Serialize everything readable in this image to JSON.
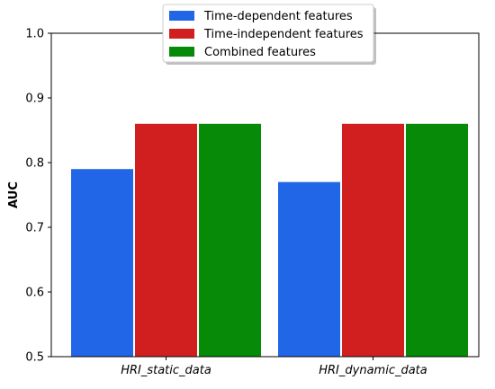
{
  "chart_data": {
    "type": "bar",
    "categories": [
      "HRI_static_data",
      "HRI_dynamic_data"
    ],
    "series": [
      {
        "name": "Time-dependent features",
        "values": [
          0.79,
          0.77
        ],
        "color": "#2166e6"
      },
      {
        "name": "Time-independent features",
        "values": [
          0.86,
          0.86
        ],
        "color": "#d11f1f"
      },
      {
        "name": "Combined features",
        "values": [
          0.86,
          0.86
        ],
        "color": "#078a07"
      }
    ],
    "ylabel": "AUC",
    "ylim": [
      0.5,
      1.0
    ],
    "yticks": [
      "0.5",
      "0.6",
      "0.7",
      "0.8",
      "0.9",
      "1.0"
    ],
    "legend": "top-center",
    "grid": false
  }
}
